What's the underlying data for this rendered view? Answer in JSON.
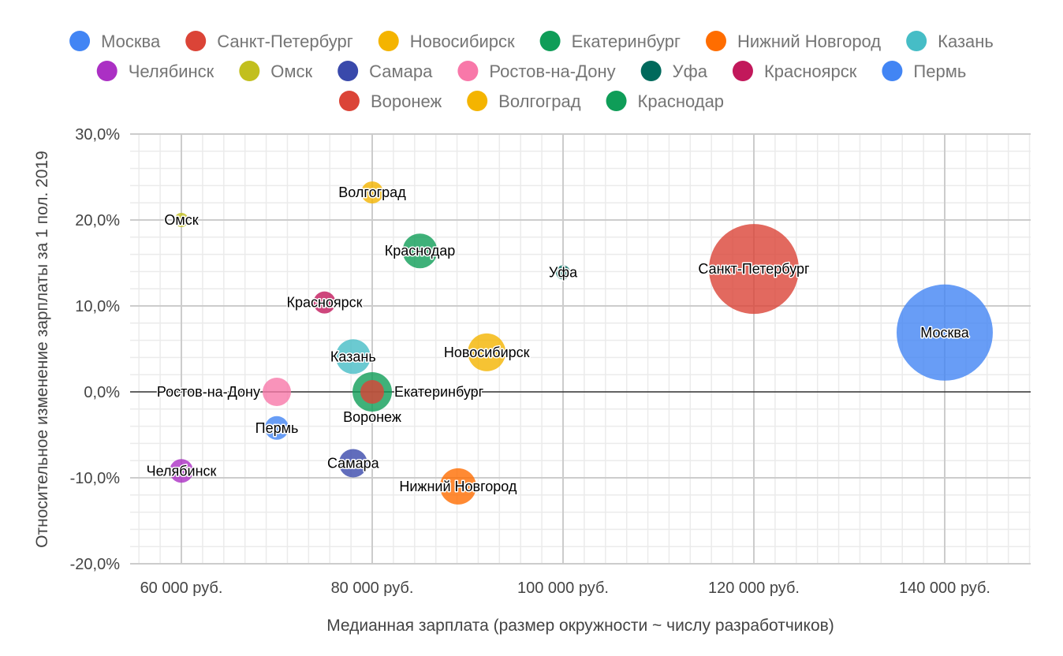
{
  "chart_data": {
    "type": "bubble",
    "title": "",
    "xlabel": "Медианная зарплата (размер окружности ~ числу разработчиков)",
    "ylabel": "Относительное изменение зарплаты за 1 пол. 2019",
    "xlim": [
      54600,
      149000
    ],
    "ylim": [
      -20,
      30
    ],
    "x_ticks": [
      60000,
      80000,
      100000,
      120000,
      140000
    ],
    "x_tick_labels": [
      "60 000 руб.",
      "80 000 руб.",
      "100 000 руб.",
      "120 000 руб.",
      "140 000 руб."
    ],
    "y_ticks": [
      30,
      20,
      10,
      0,
      -10,
      -20
    ],
    "y_tick_labels": [
      "30,0%",
      "20,0%",
      "10,0%",
      "0,0%",
      "-10,0%",
      "-20,0%"
    ],
    "grid": true,
    "legend_position": "top",
    "size_note": "relative bubble size",
    "series": [
      {
        "name": "Москва",
        "x": 140000,
        "y": 6.9,
        "size": 61,
        "color": "#4285F4"
      },
      {
        "name": "Санкт-Петербург",
        "x": 120000,
        "y": 14.3,
        "size": 57,
        "color": "#DB4437"
      },
      {
        "name": "Новосибирск",
        "x": 92000,
        "y": 4.6,
        "size": 24,
        "color": "#F4B400"
      },
      {
        "name": "Екатеринбург",
        "x": 80000,
        "y": 0.0,
        "size": 25,
        "color": "#0F9D58"
      },
      {
        "name": "Нижний Новгород",
        "x": 89000,
        "y": -11.0,
        "size": 23,
        "color": "#FF6D00"
      },
      {
        "name": "Казань",
        "x": 78000,
        "y": 4.1,
        "size": 22,
        "color": "#46BDC6"
      },
      {
        "name": "Челябинск",
        "x": 60000,
        "y": -9.2,
        "size": 15,
        "color": "#AB30C4"
      },
      {
        "name": "Омск",
        "x": 60000,
        "y": 20.0,
        "size": 9,
        "color": "#C2BF1E"
      },
      {
        "name": "Самара",
        "x": 78000,
        "y": -8.3,
        "size": 18,
        "color": "#3949AB"
      },
      {
        "name": "Ростов-на-Дону",
        "x": 70000,
        "y": 0.0,
        "size": 18,
        "color": "#F878A9"
      },
      {
        "name": "Уфа",
        "x": 100000,
        "y": 13.9,
        "size": 9,
        "color": "#00695C"
      },
      {
        "name": "Красноярск",
        "x": 75000,
        "y": 10.4,
        "size": 14,
        "color": "#C2185B"
      },
      {
        "name": "Пермь",
        "x": 70000,
        "y": -4.2,
        "size": 15,
        "color": "#4285F4"
      },
      {
        "name": "Воронеж",
        "x": 80000,
        "y": 0.0,
        "size": 15,
        "color": "#DB4437"
      },
      {
        "name": "Волгоград",
        "x": 80000,
        "y": 23.2,
        "size": 14,
        "color": "#F4B400"
      },
      {
        "name": "Краснодар",
        "x": 85000,
        "y": 16.4,
        "size": 22,
        "color": "#0F9D58"
      }
    ]
  }
}
